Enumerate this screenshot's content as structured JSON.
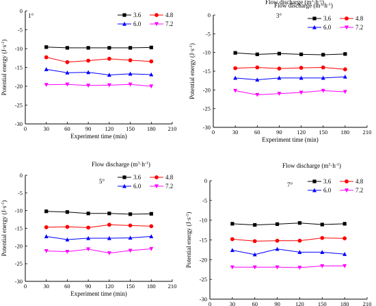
{
  "figure": {
    "legend_title": "Flow discharge (m",
    "legend_title_sup": "3",
    "legend_title_mid": "·h",
    "legend_title_sup2": "-1",
    "legend_title_end": ")",
    "ylabel_main": "Potential energy (J·s",
    "ylabel_sup": "-1",
    "ylabel_end": ")",
    "xlabel": "Experiment time (min)"
  },
  "chart_data": [
    {
      "type": "line",
      "panel_label": "1°",
      "x": [
        30,
        60,
        90,
        120,
        150,
        180
      ],
      "xlim": [
        0,
        210
      ],
      "xticks": [
        "0",
        "30",
        "60",
        "90",
        "120",
        "150",
        "180",
        "210"
      ],
      "ylim": [
        -30,
        0
      ],
      "yticks": [
        "0",
        "-5",
        "-10",
        "-15",
        "-20",
        "-25",
        "-30"
      ],
      "series": [
        {
          "name": "3.6",
          "color": "#000000",
          "marker": "square",
          "values": [
            -9.6,
            -9.8,
            -9.8,
            -9.8,
            -9.8,
            -9.7
          ]
        },
        {
          "name": "4.8",
          "color": "#ff0000",
          "marker": "circle",
          "values": [
            -12.3,
            -13.6,
            -13.2,
            -12.7,
            -13.1,
            -13.4
          ]
        },
        {
          "name": "6.0",
          "color": "#0000ff",
          "marker": "triangle-up",
          "values": [
            -15.5,
            -16.4,
            -16.3,
            -17.0,
            -16.7,
            -16.9
          ]
        },
        {
          "name": "7.2",
          "color": "#ff00ff",
          "marker": "triangle-down",
          "values": [
            -19.6,
            -19.5,
            -19.8,
            -19.7,
            -19.5,
            -20.0
          ]
        }
      ]
    },
    {
      "type": "line",
      "panel_label": "3°",
      "x": [
        30,
        60,
        90,
        120,
        150,
        180
      ],
      "xlim": [
        0,
        210
      ],
      "xticks": [
        "0",
        "30",
        "60",
        "90",
        "120",
        "150",
        "180",
        "210"
      ],
      "ylim": [
        -30,
        0
      ],
      "yticks": [
        "0",
        "-5",
        "-10",
        "-15",
        "-20",
        "-25",
        "-30"
      ],
      "series": [
        {
          "name": "3.6",
          "color": "#000000",
          "marker": "square",
          "values": [
            -10.1,
            -10.5,
            -10.3,
            -10.5,
            -10.6,
            -10.4
          ]
        },
        {
          "name": "4.8",
          "color": "#ff0000",
          "marker": "circle",
          "values": [
            -14.2,
            -14.0,
            -14.3,
            -14.1,
            -14.0,
            -14.5
          ]
        },
        {
          "name": "6.0",
          "color": "#0000ff",
          "marker": "triangle-up",
          "values": [
            -16.8,
            -17.3,
            -16.8,
            -16.8,
            -16.8,
            -16.5
          ]
        },
        {
          "name": "7.2",
          "color": "#ff00ff",
          "marker": "triangle-down",
          "values": [
            -20.2,
            -21.3,
            -21.0,
            -20.7,
            -20.2,
            -20.5
          ]
        }
      ]
    },
    {
      "type": "line",
      "panel_label": "5°",
      "x": [
        30,
        60,
        90,
        120,
        150,
        180
      ],
      "xlim": [
        0,
        210
      ],
      "xticks": [
        "0",
        "30",
        "60",
        "90",
        "120",
        "150",
        "180",
        "210"
      ],
      "ylim": [
        -30,
        0
      ],
      "yticks": [
        "0",
        "-5",
        "-10",
        "-15",
        "-20",
        "-25",
        "-30"
      ],
      "series": [
        {
          "name": "3.6",
          "color": "#000000",
          "marker": "square",
          "values": [
            -10.2,
            -10.4,
            -10.8,
            -10.8,
            -11.0,
            -10.9
          ]
        },
        {
          "name": "4.8",
          "color": "#ff0000",
          "marker": "circle",
          "values": [
            -14.7,
            -14.6,
            -14.8,
            -14.0,
            -14.2,
            -14.4
          ]
        },
        {
          "name": "6.0",
          "color": "#0000ff",
          "marker": "triangle-up",
          "values": [
            -17.3,
            -18.2,
            -17.8,
            -17.8,
            -17.7,
            -17.3
          ]
        },
        {
          "name": "7.2",
          "color": "#ff00ff",
          "marker": "triangle-down",
          "values": [
            -21.4,
            -21.6,
            -20.9,
            -22.0,
            -21.3,
            -20.8
          ]
        }
      ]
    },
    {
      "type": "line",
      "panel_label": "7°",
      "x": [
        30,
        60,
        90,
        120,
        150,
        180
      ],
      "xlim": [
        0,
        210
      ],
      "xticks": [
        "0",
        "30",
        "60",
        "90",
        "120",
        "150",
        "180",
        "210"
      ],
      "ylim": [
        -30,
        0
      ],
      "yticks": [
        "0",
        "-5",
        "-10",
        "-15",
        "-20",
        "-25",
        "-30"
      ],
      "series": [
        {
          "name": "3.6",
          "color": "#000000",
          "marker": "square",
          "values": [
            -10.9,
            -11.2,
            -11.0,
            -10.7,
            -11.1,
            -10.9
          ]
        },
        {
          "name": "4.8",
          "color": "#ff0000",
          "marker": "circle",
          "values": [
            -14.8,
            -15.3,
            -15.2,
            -15.2,
            -14.5,
            -14.6
          ]
        },
        {
          "name": "6.0",
          "color": "#0000ff",
          "marker": "triangle-up",
          "values": [
            -17.6,
            -18.7,
            -17.3,
            -18.1,
            -18.1,
            -18.6
          ]
        },
        {
          "name": "7.2",
          "color": "#ff00ff",
          "marker": "triangle-down",
          "values": [
            -21.9,
            -21.9,
            -21.9,
            -22.0,
            -21.6,
            -21.6
          ]
        }
      ]
    }
  ]
}
